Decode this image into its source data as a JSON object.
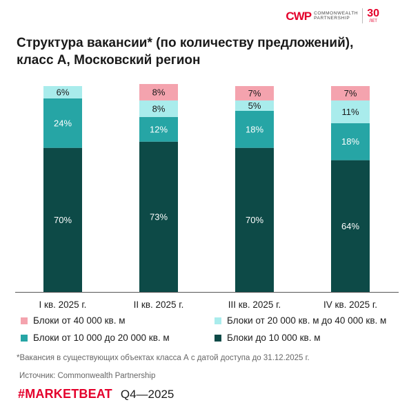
{
  "logo": {
    "mark": "CWP",
    "text_line1": "COMMONWEALTH",
    "text_line2": "PARTNERSHIP",
    "years": "30",
    "years_unit": "ЛЕТ"
  },
  "colors": {
    "s40plus": "#f4a3ae",
    "s20to40": "#a9ecec",
    "s10to20": "#26a5a5",
    "sUpTo10": "#0d4a47",
    "brand": "#e4002b",
    "axis": "#555555"
  },
  "chart_data": {
    "type": "bar",
    "stacked": true,
    "percent": true,
    "title": "Структура вакансии* (по количеству предложений), класс А, Московский регион",
    "categories": [
      "I кв. 2025 г.",
      "II кв. 2025 г.",
      "III кв. 2025 г.",
      "IV кв. 2025 г."
    ],
    "series": [
      {
        "name": "Блоки до 10 000 кв. м",
        "color": "#0d4a47",
        "values": [
          70,
          73,
          70,
          64
        ],
        "labels": [
          "70%",
          "73%",
          "70%",
          "64%"
        ]
      },
      {
        "name": "Блоки от 10 000 до 20 000 кв. м",
        "color": "#26a5a5",
        "values": [
          24,
          12,
          18,
          18
        ],
        "labels": [
          "24%",
          "12%",
          "18%",
          "18%"
        ]
      },
      {
        "name": "Блоки от 20 000 кв. м до 40 000 кв. м",
        "color": "#a9ecec",
        "values": [
          6,
          8,
          5,
          11
        ],
        "labels": [
          "6%",
          "8%",
          "5%",
          "11%"
        ]
      },
      {
        "name": "Блоки от 40 000 кв. м",
        "color": "#f4a3ae",
        "values": [
          0,
          8,
          7,
          7
        ],
        "labels": [
          "",
          "8%",
          "7%",
          "7%"
        ]
      }
    ],
    "ylim": [
      0,
      100
    ],
    "grid": false,
    "legend_position": "bottom"
  },
  "legend": {
    "item1": "Блоки от 40 000 кв. м",
    "item2": "Блоки от 20 000 кв. м до 40 000 кв. м",
    "item3": "Блоки от 10 000 до 20 000 кв. м",
    "item4": "Блоки до 10 000 кв. м"
  },
  "footnote": "*Вакансия в существующих объектах класса А с датой доступа до 31.12.2025 г.",
  "source": "Источник: Commonwealth Partnership",
  "footer": {
    "brand": "#MARKETBEAT",
    "period": "Q4—2025"
  }
}
